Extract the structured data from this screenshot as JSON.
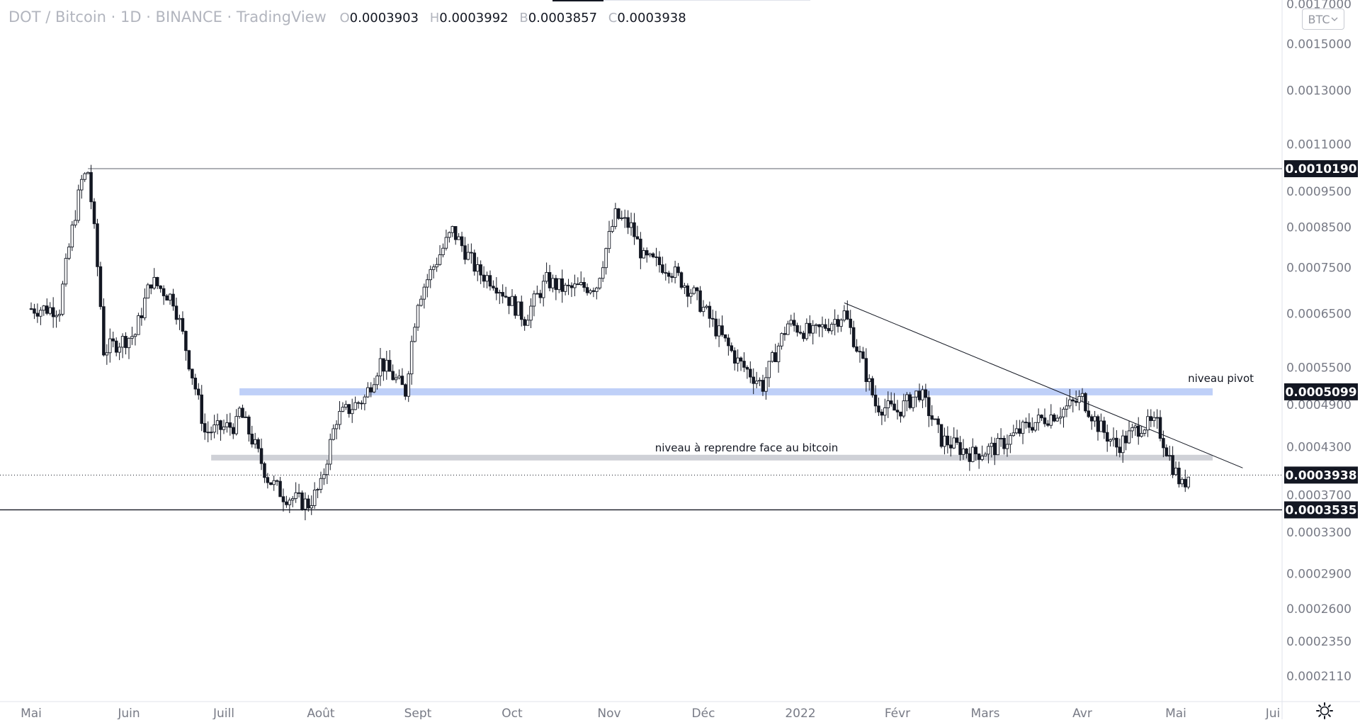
{
  "header": {
    "symbol": "DOT / Bitcoin · 1D · BINANCE · TradingView",
    "o_key": "O",
    "o_val": "0.0003903",
    "h_key": "H",
    "h_val": "0.0003992",
    "b_key": "B",
    "b_val": "0.0003857",
    "c_key": "C",
    "c_val": "0.0003938"
  },
  "currency_button": {
    "label": "BTC",
    "icon": "chevron-down-icon"
  },
  "settings_icon": "gear-icon",
  "colors": {
    "candle": "#131722",
    "axis_text": "#787b86",
    "highlight_blue": "#bfd0f8",
    "highlight_gray": "#cfd1d7",
    "badge_bg": "#131722",
    "badge_text": "#ffffff"
  },
  "chart_data": {
    "type": "candlestick",
    "title": "DOT / Bitcoin · 1D · BINANCE · TradingView",
    "ylim": [
      0.000195,
      0.00172
    ],
    "y_ticks": [
      "0.0017000",
      "0.0015000",
      "0.0013000",
      "0.0011000",
      "0.0009500",
      "0.0008500",
      "0.0007500",
      "0.0006500",
      "0.0005500",
      "0.0004900",
      "0.0004300",
      "0.0003700",
      "0.0003300",
      "0.0002900",
      "0.0002600",
      "0.0002350",
      "0.0002110"
    ],
    "x_ticks": [
      "Mai",
      "Juin",
      "Juill",
      "Août",
      "Sept",
      "Oct",
      "Nov",
      "Déc",
      "2022",
      "Févr",
      "Mars",
      "Avr",
      "Mai",
      "Jui"
    ],
    "price_badges": [
      "0.0010190",
      "0.0005099",
      "0.0003938",
      "0.0003535"
    ],
    "lines": [
      {
        "kind": "horizontal",
        "value": 0.001019,
        "from": "2021-05-19"
      },
      {
        "kind": "horizontal",
        "value": 0.0003535
      },
      {
        "kind": "dotted",
        "value": 0.0003938
      }
    ],
    "zones": [
      {
        "label": "niveau pivot",
        "value": 0.0005099,
        "color": "blue",
        "from": "2021-07-06"
      },
      {
        "label": "niveau à reprendre face au bitcoin",
        "value": 0.0004157,
        "color": "gray",
        "from": "2021-06-27"
      }
    ],
    "trendline": {
      "from": [
        "2022-01-15",
        0.000672
      ],
      "to": [
        "2022-05-02",
        0.000437
      ]
    },
    "series_path": [
      {
        "date": "2021-05-01",
        "close": 0.00066
      },
      {
        "date": "2021-05-10",
        "close": 0.00066
      },
      {
        "date": "2021-05-17",
        "close": 0.00098
      },
      {
        "date": "2021-05-19",
        "close": 0.00101
      },
      {
        "date": "2021-05-24",
        "close": 0.00058
      },
      {
        "date": "2021-06-03",
        "close": 0.00061
      },
      {
        "date": "2021-06-08",
        "close": 0.00072
      },
      {
        "date": "2021-06-15",
        "close": 0.00068
      },
      {
        "date": "2021-06-20",
        "close": 0.00056
      },
      {
        "date": "2021-06-25",
        "close": 0.00045
      },
      {
        "date": "2021-07-05",
        "close": 0.00046
      },
      {
        "date": "2021-07-06",
        "close": 0.00048
      },
      {
        "date": "2021-07-15",
        "close": 0.00039
      },
      {
        "date": "2021-07-20",
        "close": 0.00037
      },
      {
        "date": "2021-07-28",
        "close": 0.00036
      },
      {
        "date": "2021-08-01",
        "close": 0.00038
      },
      {
        "date": "2021-08-06",
        "close": 0.00047
      },
      {
        "date": "2021-08-15",
        "close": 0.0005
      },
      {
        "date": "2021-08-20",
        "close": 0.00056
      },
      {
        "date": "2021-08-28",
        "close": 0.00051
      },
      {
        "date": "2021-09-01",
        "close": 0.00068
      },
      {
        "date": "2021-09-12",
        "close": 0.00084
      },
      {
        "date": "2021-09-20",
        "close": 0.00074
      },
      {
        "date": "2021-09-25",
        "close": 0.00072
      },
      {
        "date": "2021-10-05",
        "close": 0.00064
      },
      {
        "date": "2021-10-12",
        "close": 0.00072
      },
      {
        "date": "2021-10-18",
        "close": 0.0007
      },
      {
        "date": "2021-10-28",
        "close": 0.00071
      },
      {
        "date": "2021-11-03",
        "close": 0.00088
      },
      {
        "date": "2021-11-08",
        "close": 0.00085
      },
      {
        "date": "2021-11-12",
        "close": 0.00077
      },
      {
        "date": "2021-11-20",
        "close": 0.00075
      },
      {
        "date": "2021-11-28",
        "close": 0.00069
      },
      {
        "date": "2021-12-05",
        "close": 0.00062
      },
      {
        "date": "2021-12-12",
        "close": 0.00056
      },
      {
        "date": "2021-12-20",
        "close": 0.00052
      },
      {
        "date": "2021-12-28",
        "close": 0.00063
      },
      {
        "date": "2022-01-05",
        "close": 0.00061
      },
      {
        "date": "2022-01-15",
        "close": 0.00065
      },
      {
        "date": "2022-01-20",
        "close": 0.00057
      },
      {
        "date": "2022-01-25",
        "close": 0.00049
      },
      {
        "date": "2022-02-01",
        "close": 0.00048
      },
      {
        "date": "2022-02-08",
        "close": 0.00051
      },
      {
        "date": "2022-02-15",
        "close": 0.00044
      },
      {
        "date": "2022-02-25",
        "close": 0.00042
      },
      {
        "date": "2022-03-05",
        "close": 0.00043
      },
      {
        "date": "2022-03-15",
        "close": 0.00046
      },
      {
        "date": "2022-03-25",
        "close": 0.00048
      },
      {
        "date": "2022-04-01",
        "close": 0.0005
      },
      {
        "date": "2022-04-06",
        "close": 0.00046
      },
      {
        "date": "2022-04-12",
        "close": 0.00043
      },
      {
        "date": "2022-04-20",
        "close": 0.00046
      },
      {
        "date": "2022-04-25",
        "close": 0.00046
      },
      {
        "date": "2022-04-30",
        "close": 0.000405
      },
      {
        "date": "2022-05-03",
        "close": 0.00038
      },
      {
        "date": "2022-05-05",
        "close": 0.0003938
      }
    ]
  }
}
